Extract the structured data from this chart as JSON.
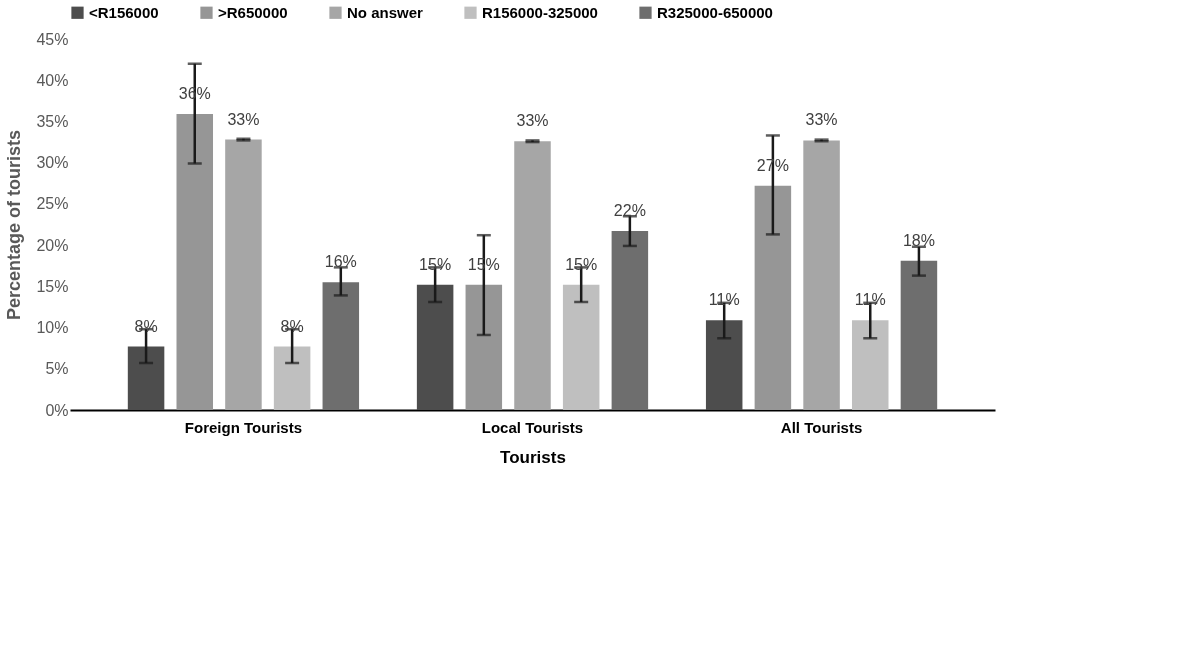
{
  "chart_data": {
    "type": "bar",
    "xlabel": "Tourists",
    "ylabel": "Percentage of tourists",
    "categories": [
      "Foreign Tourists",
      "Local Tourists",
      "All Tourists"
    ],
    "series": [
      {
        "name": "<R156000",
        "color": "#4d4d4d",
        "values": [
          7.7,
          15.2,
          10.9
        ],
        "errors": [
          [
            5.7,
            9.8
          ],
          [
            13.1,
            17.3
          ],
          [
            8.7,
            13.0
          ]
        ],
        "value_labels": [
          "8%",
          "15%",
          "11%"
        ]
      },
      {
        "name": ">R650000",
        "color": "#969696",
        "values": [
          35.9,
          15.2,
          27.2
        ],
        "errors": [
          [
            29.9,
            42.0
          ],
          [
            9.1,
            21.2
          ],
          [
            21.3,
            33.3
          ]
        ],
        "value_labels": [
          "36%",
          "15%",
          "27%"
        ]
      },
      {
        "name": "No answer",
        "color": "#a6a6a6",
        "values": [
          32.8,
          32.6,
          32.7
        ],
        "errors": [
          [
            32.7,
            32.9
          ],
          [
            32.5,
            32.7
          ],
          [
            32.6,
            32.8
          ]
        ],
        "value_labels": [
          "33%",
          "33%",
          "33%"
        ]
      },
      {
        "name": "R156000-325000",
        "color": "#bfbfbf",
        "values": [
          7.7,
          15.2,
          10.9
        ],
        "errors": [
          [
            5.7,
            9.8
          ],
          [
            13.1,
            17.3
          ],
          [
            8.7,
            13.0
          ]
        ],
        "value_labels": [
          "8%",
          "15%",
          "11%"
        ]
      },
      {
        "name": "R325000-650000",
        "color": "#6e6e6e",
        "values": [
          15.5,
          21.7,
          18.1
        ],
        "errors": [
          [
            13.9,
            17.3
          ],
          [
            19.9,
            23.5
          ],
          [
            16.3,
            19.8
          ]
        ],
        "value_labels": [
          "16%",
          "22%",
          "18%"
        ]
      }
    ],
    "ylim": [
      0,
      45
    ],
    "yticks": [
      {
        "value": 0,
        "label": "0%"
      },
      {
        "value": 5,
        "label": "5%"
      },
      {
        "value": 10,
        "label": "10%"
      },
      {
        "value": 15,
        "label": "15%"
      },
      {
        "value": 20,
        "label": "20%"
      },
      {
        "value": 25,
        "label": "25%"
      },
      {
        "value": 30,
        "label": "30%"
      },
      {
        "value": 35,
        "label": "35%"
      },
      {
        "value": 40,
        "label": "40%"
      },
      {
        "value": 45,
        "label": "45%"
      }
    ],
    "grid": false,
    "legend": "top"
  }
}
